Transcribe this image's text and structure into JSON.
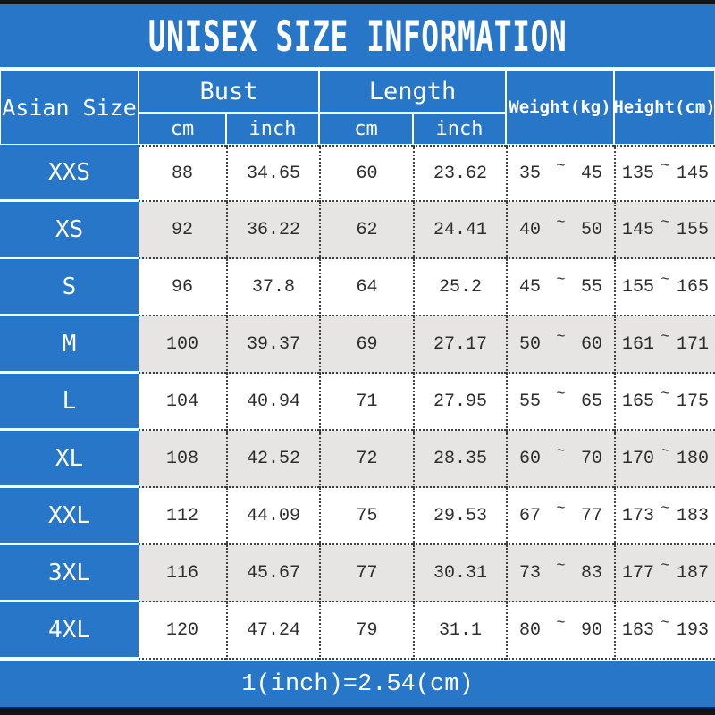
{
  "title": "UNISEX SIZE INFORMATION",
  "colors": {
    "accent_blue": "#2776c7",
    "row_alt_gray": "#e6e5e3",
    "dot_border": "#3f3f3f",
    "frame_black": "#131313"
  },
  "table": {
    "header": {
      "size_column_label": "Asian Size",
      "bust_label": "Bust",
      "length_label": "Length",
      "weight_label": "Weight(kg)",
      "height_label": "Height(cm)",
      "cm_label": "cm",
      "inch_label": "inch"
    },
    "range_separator": "~",
    "rows": [
      {
        "size": "XXS",
        "bust_cm": "88",
        "bust_inch": "34.65",
        "length_cm": "60",
        "length_inch": "23.62",
        "weight_min": "35",
        "weight_max": "45",
        "height_min": "135",
        "height_max": "145"
      },
      {
        "size": "XS",
        "bust_cm": "92",
        "bust_inch": "36.22",
        "length_cm": "62",
        "length_inch": "24.41",
        "weight_min": "40",
        "weight_max": "50",
        "height_min": "145",
        "height_max": "155"
      },
      {
        "size": "S",
        "bust_cm": "96",
        "bust_inch": "37.8",
        "length_cm": "64",
        "length_inch": "25.2",
        "weight_min": "45",
        "weight_max": "55",
        "height_min": "155",
        "height_max": "165"
      },
      {
        "size": "M",
        "bust_cm": "100",
        "bust_inch": "39.37",
        "length_cm": "69",
        "length_inch": "27.17",
        "weight_min": "50",
        "weight_max": "60",
        "height_min": "161",
        "height_max": "171"
      },
      {
        "size": "L",
        "bust_cm": "104",
        "bust_inch": "40.94",
        "length_cm": "71",
        "length_inch": "27.95",
        "weight_min": "55",
        "weight_max": "65",
        "height_min": "165",
        "height_max": "175"
      },
      {
        "size": "XL",
        "bust_cm": "108",
        "bust_inch": "42.52",
        "length_cm": "72",
        "length_inch": "28.35",
        "weight_min": "60",
        "weight_max": "70",
        "height_min": "170",
        "height_max": "180"
      },
      {
        "size": "XXL",
        "bust_cm": "112",
        "bust_inch": "44.09",
        "length_cm": "75",
        "length_inch": "29.53",
        "weight_min": "67",
        "weight_max": "77",
        "height_min": "173",
        "height_max": "183"
      },
      {
        "size": "3XL",
        "bust_cm": "116",
        "bust_inch": "45.67",
        "length_cm": "77",
        "length_inch": "30.31",
        "weight_min": "73",
        "weight_max": "83",
        "height_min": "177",
        "height_max": "187"
      },
      {
        "size": "4XL",
        "bust_cm": "120",
        "bust_inch": "47.24",
        "length_cm": "79",
        "length_inch": "31.1",
        "weight_min": "80",
        "weight_max": "90",
        "height_min": "183",
        "height_max": "193"
      }
    ]
  },
  "footer": {
    "conversion_note": "1(inch)=2.54(cm)"
  }
}
